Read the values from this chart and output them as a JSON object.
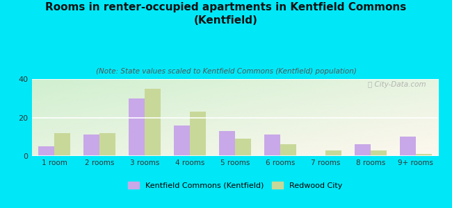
{
  "title": "Rooms in renter-occupied apartments in Kentfield Commons\n(Kentfield)",
  "subtitle": "(Note: State values scaled to Kentfield Commons (Kentfield) population)",
  "categories": [
    "1 room",
    "2 rooms",
    "3 rooms",
    "4 rooms",
    "5 rooms",
    "6 rooms",
    "7 rooms",
    "8 rooms",
    "9+ rooms"
  ],
  "kentfield_values": [
    5,
    11,
    30,
    16,
    13,
    11,
    0,
    6,
    10
  ],
  "redwood_values": [
    12,
    12,
    35,
    23,
    9,
    6,
    3,
    3,
    1
  ],
  "kentfield_color": "#c8a8e8",
  "redwood_color": "#c8d898",
  "background_color": "#00e8f8",
  "ylim": [
    0,
    40
  ],
  "yticks": [
    0,
    20,
    40
  ],
  "kentfield_label": "Kentfield Commons (Kentfield)",
  "redwood_label": "Redwood City",
  "watermark": "ⓘ City-Data.com",
  "title_fontsize": 11,
  "subtitle_fontsize": 7.5,
  "bar_width": 0.35
}
